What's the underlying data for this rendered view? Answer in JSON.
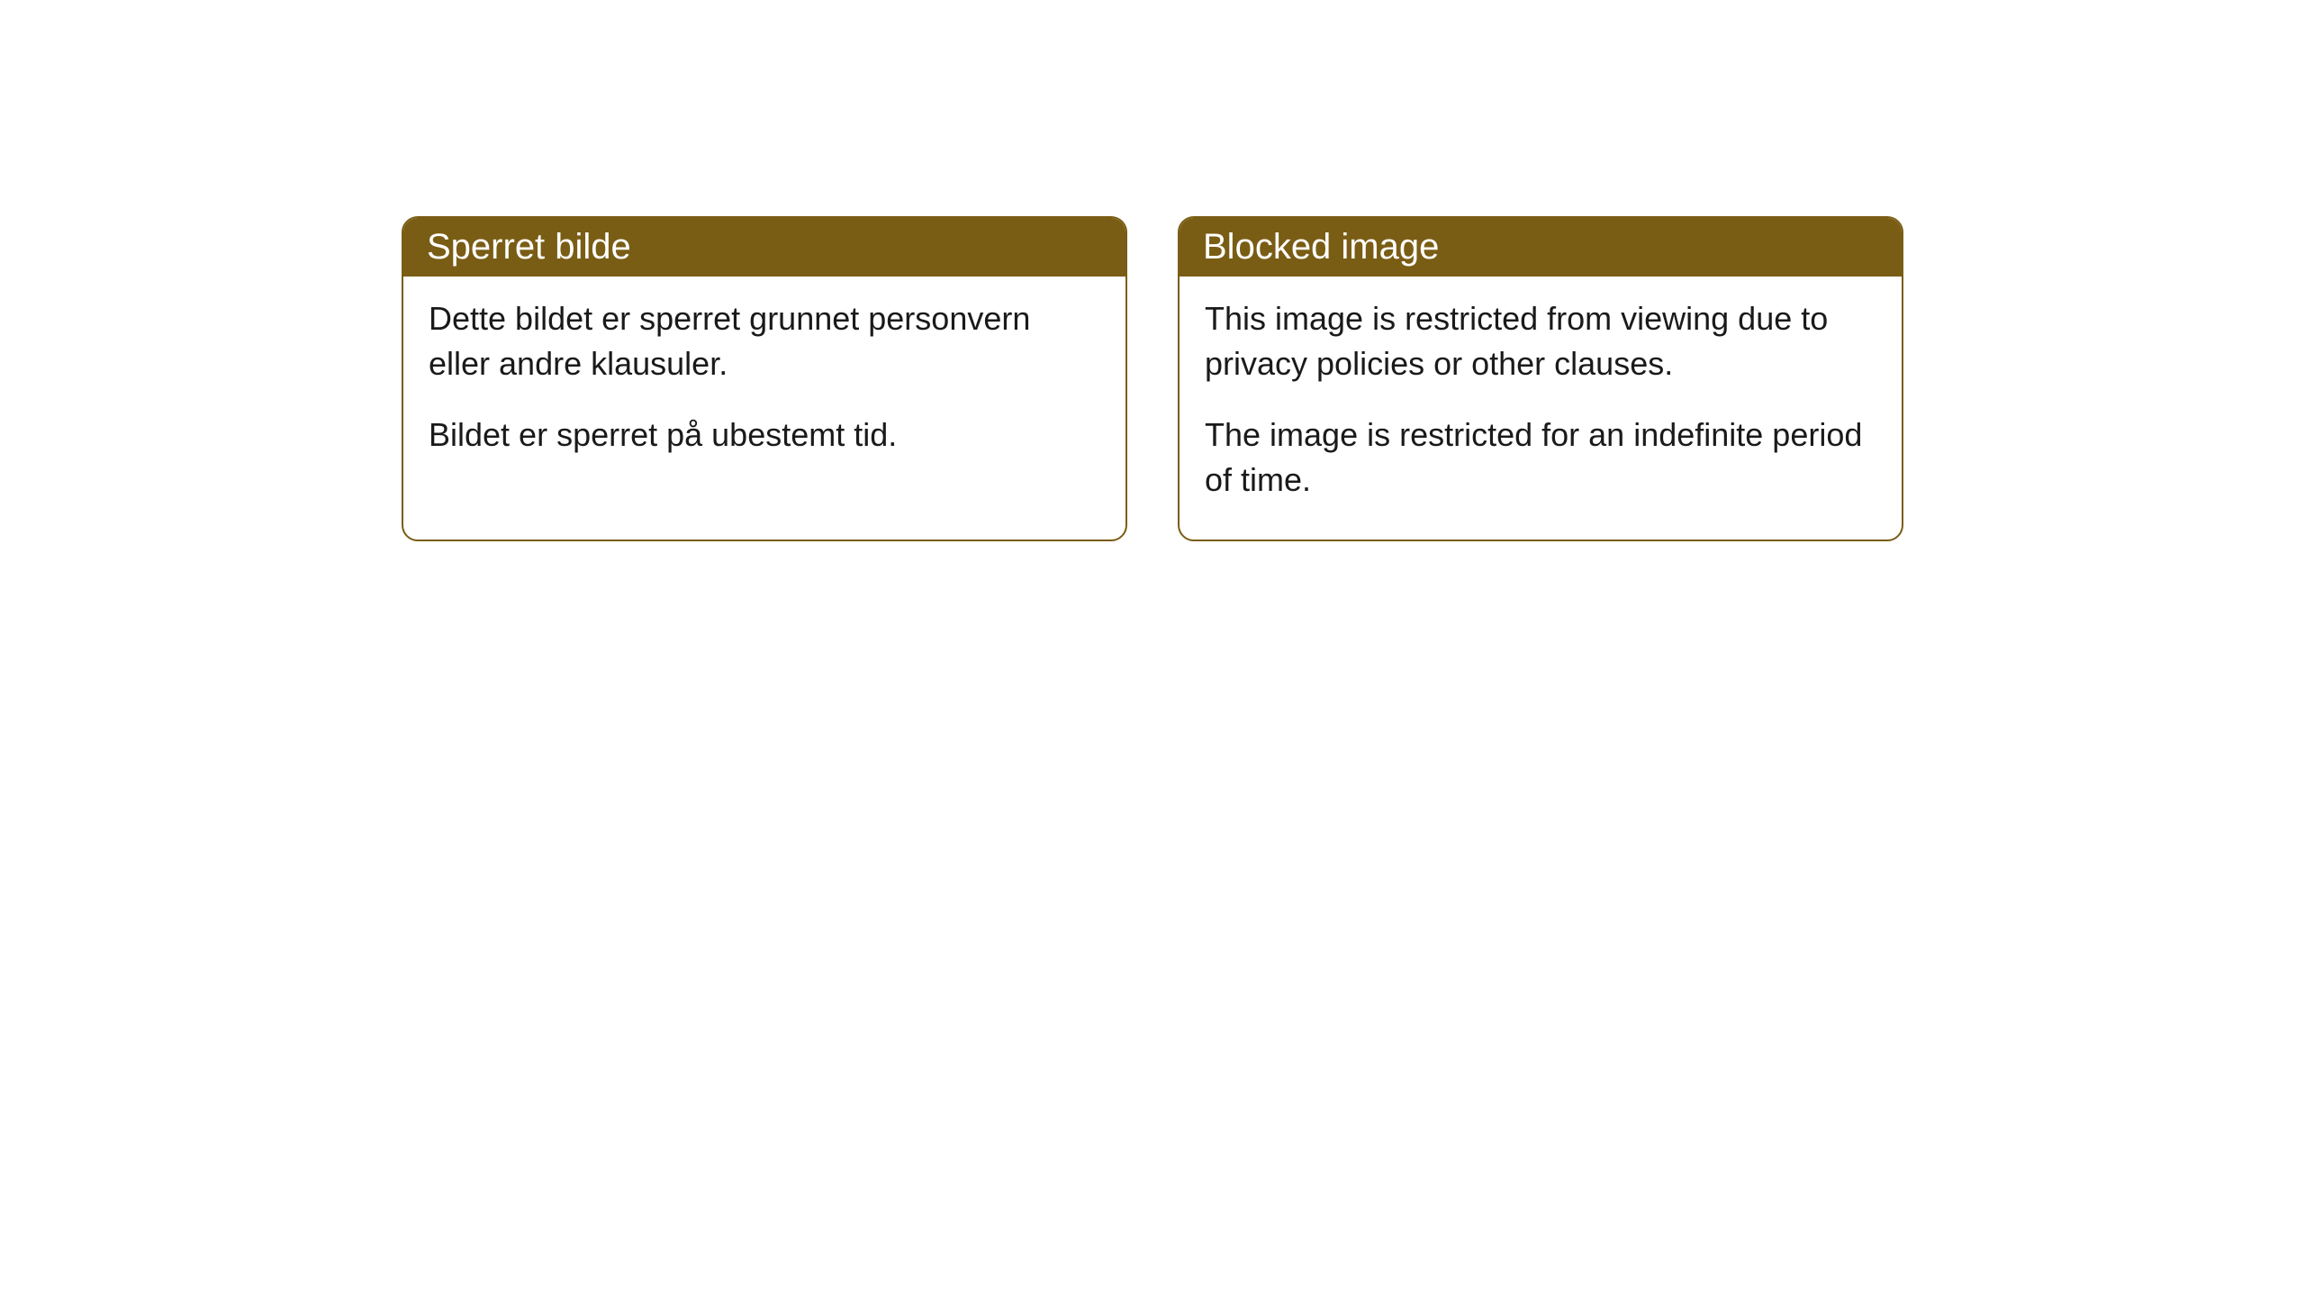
{
  "cards": [
    {
      "title": "Sperret bilde",
      "paragraph1": "Dette bildet er sperret grunnet personvern eller andre klausuler.",
      "paragraph2": "Bildet er sperret på ubestemt tid."
    },
    {
      "title": "Blocked image",
      "paragraph1": "This image is restricted from viewing due to privacy policies or other clauses.",
      "paragraph2": "The image is restricted for an indefinite period of time."
    }
  ],
  "styling": {
    "header_background": "#7a5d14",
    "header_text_color": "#ffffff",
    "border_color": "#7a5d14",
    "body_text_color": "#1a1a1a",
    "page_background": "#ffffff",
    "border_radius": 18,
    "header_font_size": 40,
    "body_font_size": 36
  }
}
